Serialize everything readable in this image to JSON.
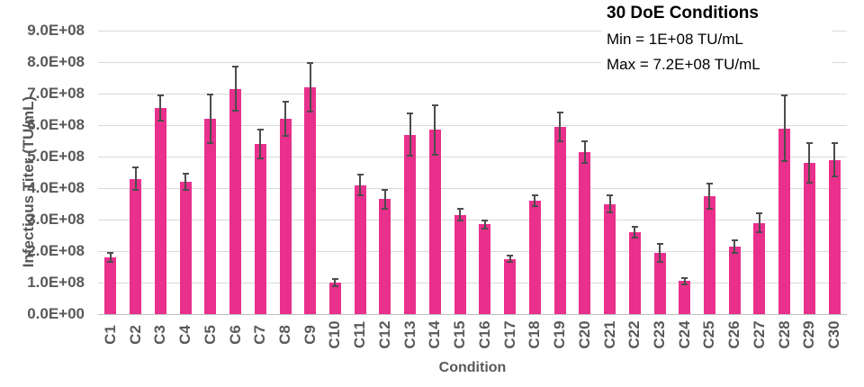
{
  "chart_data": {
    "type": "bar",
    "title": "30 DoE Conditions",
    "annotations": [
      "Min = 1E+08 TU/mL",
      "Max = 7.2E+08 TU/mL"
    ],
    "xlabel": "Condition",
    "ylabel": "Infectious Titer (TU/mL)",
    "categories": [
      "C1",
      "C2",
      "C3",
      "C4",
      "C5",
      "C6",
      "C7",
      "C8",
      "C9",
      "C10",
      "C11",
      "C12",
      "C13",
      "C14",
      "C15",
      "C16",
      "C17",
      "C18",
      "C19",
      "C20",
      "C21",
      "C22",
      "C23",
      "C24",
      "C25",
      "C26",
      "C27",
      "C28",
      "C29",
      "C30"
    ],
    "values": [
      180000000.0,
      430000000.0,
      655000000.0,
      420000000.0,
      620000000.0,
      715000000.0,
      540000000.0,
      620000000.0,
      720000000.0,
      100000000.0,
      410000000.0,
      365000000.0,
      570000000.0,
      585000000.0,
      315000000.0,
      285000000.0,
      175000000.0,
      360000000.0,
      595000000.0,
      515000000.0,
      350000000.0,
      260000000.0,
      195000000.0,
      105000000.0,
      375000000.0,
      215000000.0,
      290000000.0,
      590000000.0,
      480000000.0,
      490000000.0
    ],
    "errors": [
      15000000.0,
      35000000.0,
      40000000.0,
      25000000.0,
      77000000.0,
      70000000.0,
      47000000.0,
      55000000.0,
      76000000.0,
      12000000.0,
      32000000.0,
      30000000.0,
      68000000.0,
      78000000.0,
      18000000.0,
      13000000.0,
      10000000.0,
      18000000.0,
      45000000.0,
      35000000.0,
      28000000.0,
      18000000.0,
      28000000.0,
      10000000.0,
      40000000.0,
      20000000.0,
      30000000.0,
      105000000.0,
      62000000.0,
      52000000.0
    ],
    "ylim": [
      0,
      900000000.0
    ],
    "y_tick_labels": [
      "0.0E+00",
      "1.0E+08",
      "2.0E+08",
      "3.0E+08",
      "4.0E+08",
      "5.0E+08",
      "6.0E+08",
      "7.0E+08",
      "8.0E+08",
      "9.0E+08"
    ],
    "grid": true,
    "legend_position": "none",
    "colors": {
      "bar": "#E9308C",
      "error": "#4d4d4d",
      "grid": "#d9d9d9",
      "axis_line": "#bfbfbf",
      "axis_text": "#595959",
      "title_text": "#000000"
    }
  }
}
